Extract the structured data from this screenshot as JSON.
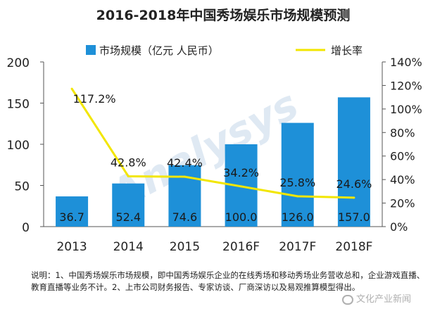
{
  "chart_data": {
    "type": "bar+line",
    "title": "2016-2018年中国秀场娱乐市场规模预测",
    "categories": [
      "2013",
      "2014",
      "2015",
      "2016F",
      "2017F",
      "2018F"
    ],
    "series": [
      {
        "name": "市场规模（亿元 人民币）",
        "type": "bar",
        "axis": "left",
        "color": "#1E90D8",
        "values": [
          36.7,
          52.4,
          74.6,
          100.0,
          126.0,
          157.0
        ],
        "labels": [
          "36.7",
          "52.4",
          "74.6",
          "100.0",
          "126.0",
          "157.0"
        ]
      },
      {
        "name": "增长率",
        "type": "line",
        "axis": "right",
        "color": "#F2E600",
        "values": [
          117.2,
          42.8,
          42.4,
          34.2,
          25.8,
          24.6
        ],
        "labels": [
          "117.2%",
          "42.8%",
          "42.4%",
          "34.2%",
          "25.8%",
          "24.6%"
        ]
      }
    ],
    "y_left": {
      "min": 0,
      "max": 200,
      "ticks": [
        "0",
        "50",
        "100",
        "150",
        "200"
      ]
    },
    "y_right": {
      "min": 0,
      "max": 140,
      "ticks": [
        "0%",
        "20%",
        "40%",
        "60%",
        "80%",
        "100%",
        "120%",
        "140%"
      ]
    },
    "legend_position": "top",
    "grid": false
  },
  "note": "说明：1、中国秀场娱乐市场规模，即中国秀场娱乐企业的在线秀场和移动秀场业务营收总和，企业游戏直播、教育直播等业务不计。2、上市公司财务报告、专家访谈、厂商深访以及易观推算模型得出。",
  "watermark_text": "文化产业新闻",
  "background_watermark": "Analysys"
}
